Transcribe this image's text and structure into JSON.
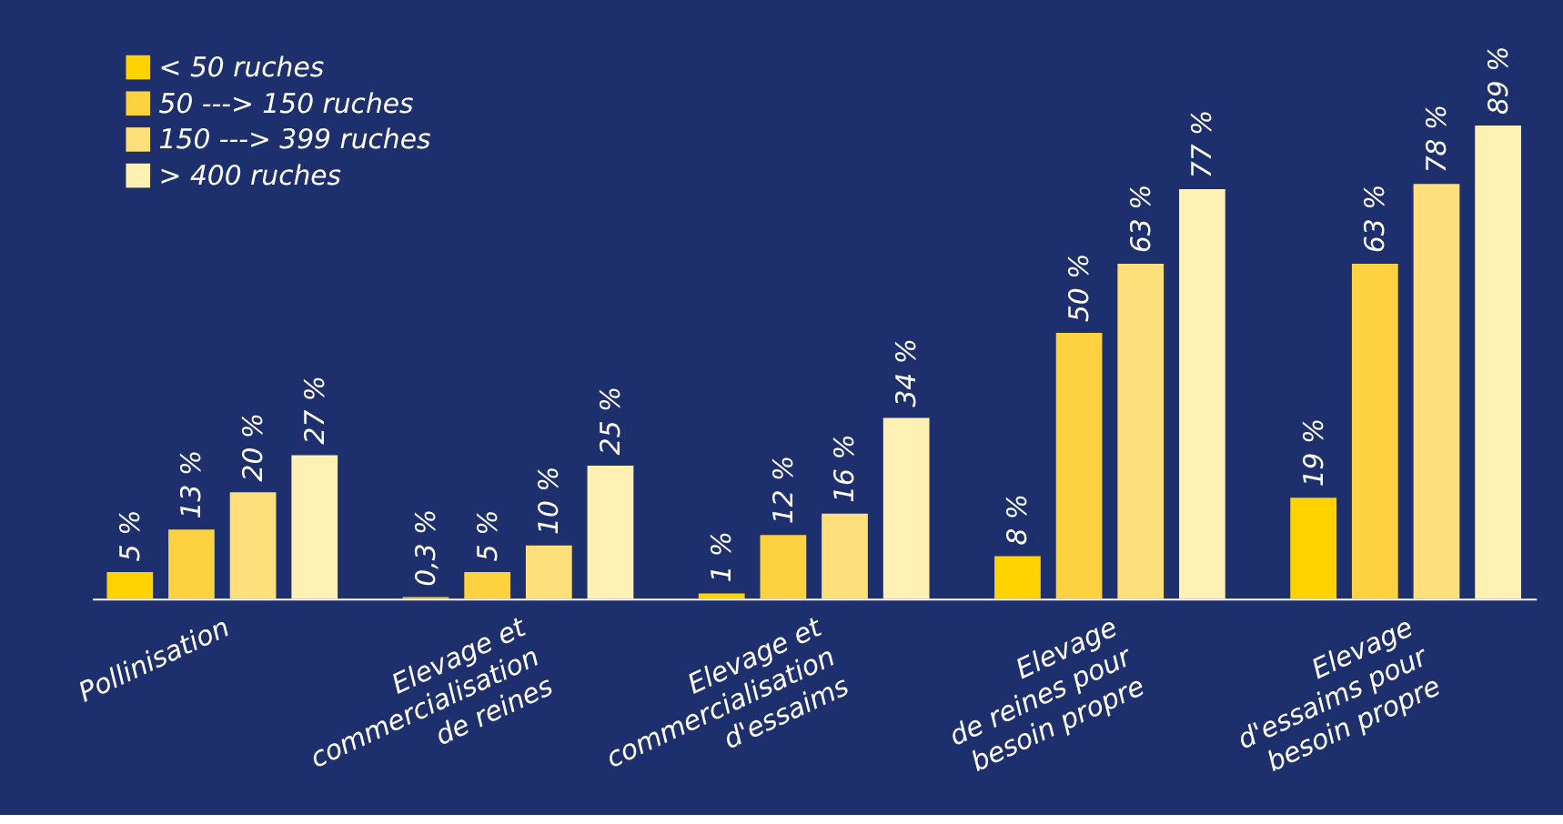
{
  "chart_data": {
    "type": "bar",
    "categories": [
      "Pollinisation",
      "Elevage et\ncommercialisation\nde reines",
      "Elevage et\ncommercialisation\nd'essaims",
      "Elevage\nde reines pour\nbesoin propre",
      "Elevage\nd'essaims pour\nbesoin propre"
    ],
    "series": [
      {
        "name": "< 50 ruches",
        "color": "#ffd200",
        "values": [
          5,
          0.3,
          1,
          8,
          19
        ],
        "value_labels": [
          "5 %",
          "0,3 %",
          "1 %",
          "8 %",
          "19 %"
        ]
      },
      {
        "name": "50 ---> 150 ruches",
        "color": "#fdd13f",
        "values": [
          13,
          5,
          12,
          50,
          63
        ],
        "value_labels": [
          "13 %",
          "5 %",
          "12 %",
          "50 %",
          "63 %"
        ]
      },
      {
        "name": "150 ---> 399 ruches",
        "color": "#fde07c",
        "values": [
          20,
          10,
          16,
          63,
          78
        ],
        "value_labels": [
          "20 %",
          "10 %",
          "16 %",
          "63 %",
          "78 %"
        ]
      },
      {
        "name": "> 400 ruches",
        "color": "#fff0b4",
        "values": [
          27,
          25,
          34,
          77,
          89
        ],
        "value_labels": [
          "27 %",
          "25 %",
          "34 %",
          "77 %",
          "89 %"
        ]
      }
    ],
    "legend": "top left",
    "grid": false
  }
}
